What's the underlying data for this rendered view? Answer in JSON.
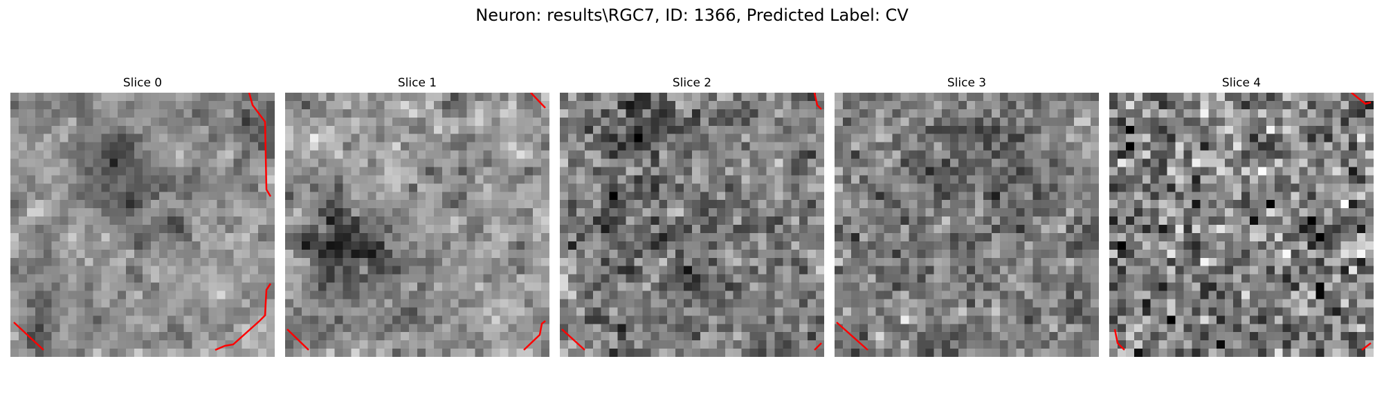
{
  "figure": {
    "title": "Neuron: results\\RGC7, ID: 1366, Predicted Label: CV"
  },
  "overlay_color": "#ff0000",
  "panels": [
    {
      "title": "Slice 0"
    },
    {
      "title": "Slice 1"
    },
    {
      "title": "Slice 2"
    },
    {
      "title": "Slice 3"
    },
    {
      "title": "Slice 4"
    }
  ]
}
